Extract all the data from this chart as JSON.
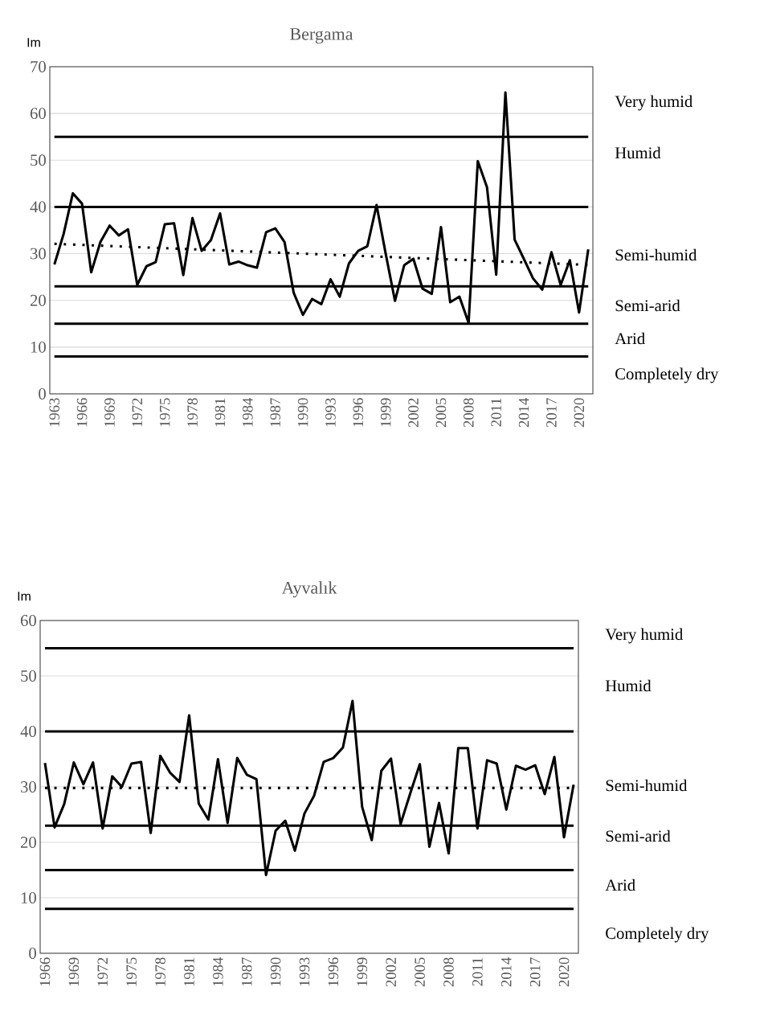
{
  "chart_data": [
    {
      "type": "line",
      "title": "Bergama",
      "ylabel": "Im",
      "categories": [
        "1963",
        null,
        null,
        "1966",
        null,
        null,
        "1969",
        null,
        null,
        "1972",
        null,
        null,
        "1975",
        null,
        null,
        "1978",
        null,
        null,
        "1981",
        null,
        null,
        "1984",
        null,
        null,
        "1987",
        null,
        null,
        "1990",
        null,
        null,
        "1993",
        null,
        null,
        "1996",
        null,
        null,
        "1999",
        null,
        null,
        "2002",
        null,
        null,
        "2005",
        null,
        null,
        "2008",
        null,
        null,
        "2011",
        null,
        null,
        "2014",
        null,
        null,
        "2017",
        null,
        null,
        "2020",
        null
      ],
      "series": [
        {
          "color": "#000000",
          "line_style": "solid",
          "values": [
            27.7,
            34.2,
            42.9,
            40.7,
            26.0,
            32.5,
            36.0,
            33.9,
            35.2,
            23.3,
            27.3,
            28.2,
            36.3,
            36.5,
            25.4,
            37.6,
            30.6,
            32.9,
            38.6,
            27.7,
            28.3,
            27.5,
            27.0,
            34.6,
            35.4,
            32.5,
            21.6,
            16.9,
            20.3,
            19.2,
            24.5,
            20.8,
            27.9,
            30.6,
            31.6,
            40.4,
            29.9,
            19.9,
            27.5,
            28.9,
            22.5,
            21.4,
            35.7,
            19.6,
            20.8,
            15.2,
            49.8,
            44.2,
            25.5,
            64.5,
            33.0,
            28.9,
            24.7,
            22.3,
            30.3,
            23.3,
            28.6,
            17.4,
            30.9
          ]
        },
        {
          "type": "line",
          "color": "#000000",
          "line_style": "dotted",
          "values": [
            32.1,
            null,
            null,
            null,
            null,
            null,
            null,
            null,
            null,
            null,
            null,
            null,
            null,
            null,
            null,
            null,
            null,
            null,
            null,
            null,
            null,
            null,
            null,
            null,
            null,
            null,
            null,
            null,
            null,
            null,
            null,
            null,
            null,
            null,
            null,
            null,
            null,
            null,
            null,
            null,
            null,
            null,
            null,
            null,
            null,
            null,
            null,
            null,
            null,
            null,
            null,
            null,
            null,
            null,
            null,
            null,
            null,
            null,
            27.6
          ]
        }
      ],
      "ylim": [
        0,
        70
      ],
      "yticks": [
        0,
        10,
        20,
        30,
        40,
        50,
        60,
        70
      ],
      "grid": "y",
      "ref_lines": [
        {
          "axis": "y",
          "value": 55,
          "color": "#000000"
        },
        {
          "axis": "y",
          "value": 40,
          "color": "#000000"
        },
        {
          "axis": "y",
          "value": 23,
          "color": "#000000"
        },
        {
          "axis": "y",
          "value": 15,
          "color": "#000000"
        },
        {
          "axis": "y",
          "value": 8,
          "color": "#000000"
        }
      ],
      "annotations": [
        "Very humid",
        "Humid",
        "Semi-humid",
        "Semi-arid",
        "Arid",
        "Completely dry"
      ]
    },
    {
      "type": "line",
      "title": "Ayvalık",
      "ylabel": "Im",
      "categories": [
        "1966",
        null,
        null,
        "1969",
        null,
        null,
        "1972",
        null,
        null,
        "1975",
        null,
        null,
        "1978",
        null,
        null,
        "1981",
        null,
        null,
        "1984",
        null,
        null,
        "1987",
        null,
        null,
        "1990",
        null,
        null,
        "1993",
        null,
        null,
        "1996",
        null,
        null,
        "1999",
        null,
        null,
        "2002",
        null,
        null,
        "2005",
        null,
        null,
        "2008",
        null,
        null,
        "2011",
        null,
        null,
        "2014",
        null,
        null,
        "2017",
        null,
        null,
        "2020",
        null
      ],
      "series": [
        {
          "color": "#000000",
          "line_style": "solid",
          "values": [
            34.3,
            22.7,
            26.9,
            34.4,
            30.5,
            34.4,
            22.5,
            31.9,
            30.0,
            34.2,
            34.5,
            21.7,
            35.6,
            32.6,
            30.9,
            42.9,
            27.0,
            24.1,
            35.0,
            23.5,
            35.2,
            32.2,
            31.4,
            14.1,
            22.1,
            23.9,
            18.5,
            25.2,
            28.4,
            34.5,
            35.2,
            37.1,
            45.5,
            26.4,
            20.4,
            32.9,
            35.1,
            23.3,
            28.8,
            34.1,
            19.2,
            27.1,
            18.0,
            37.0,
            37.0,
            22.5,
            34.8,
            34.2,
            25.9,
            33.8,
            33.1,
            33.9,
            28.7,
            35.4,
            20.9,
            30.4
          ]
        },
        {
          "type": "line",
          "color": "#000000",
          "line_style": "dotted",
          "values": [
            29.8,
            null,
            null,
            null,
            null,
            null,
            null,
            null,
            null,
            null,
            null,
            null,
            null,
            null,
            null,
            null,
            null,
            null,
            null,
            null,
            null,
            null,
            null,
            null,
            null,
            null,
            null,
            null,
            null,
            null,
            null,
            null,
            null,
            null,
            null,
            null,
            null,
            null,
            null,
            null,
            null,
            null,
            null,
            null,
            null,
            null,
            null,
            null,
            null,
            null,
            null,
            null,
            null,
            null,
            null,
            29.8
          ]
        }
      ],
      "ylim": [
        0,
        60
      ],
      "yticks": [
        0,
        10,
        20,
        30,
        40,
        50,
        60
      ],
      "grid": "y",
      "ref_lines": [
        {
          "axis": "y",
          "value": 55,
          "color": "#000000"
        },
        {
          "axis": "y",
          "value": 40,
          "color": "#000000"
        },
        {
          "axis": "y",
          "value": 23,
          "color": "#000000"
        },
        {
          "axis": "y",
          "value": 15,
          "color": "#000000"
        },
        {
          "axis": "y",
          "value": 8,
          "color": "#000000"
        }
      ],
      "annotations": [
        "Very humid",
        "Humid",
        "Semi-humid",
        "Semi-arid",
        "Arid",
        "Completely dry"
      ]
    }
  ]
}
